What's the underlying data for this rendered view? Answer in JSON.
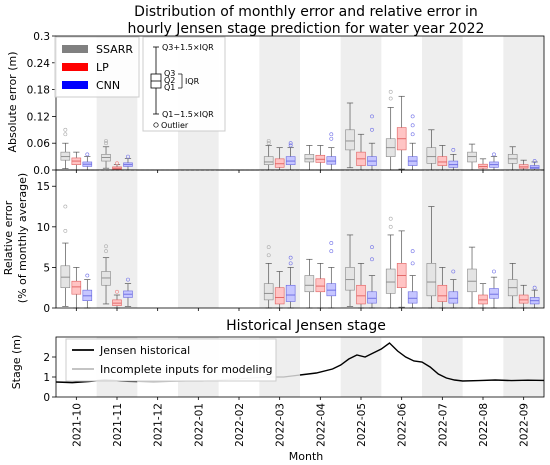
{
  "chart_data": [
    {
      "type": "box",
      "title": [
        "Distribution of monthly error and relative error in",
        "hourly Jensen stage prediction for water year 2022"
      ],
      "ylabel": "Absolute error (m)",
      "ylim": [
        0,
        0.3
      ],
      "yticks": [
        "0.0",
        "0.06",
        "0.12",
        "0.18",
        "0.24",
        "0.3"
      ],
      "categories": [
        "2021-10",
        "2021-11",
        "2021-12",
        "2022-01",
        "2022-02",
        "2022-03",
        "2022-04",
        "2022-05",
        "2022-06",
        "2022-07",
        "2022-08",
        "2022-09"
      ],
      "legend": [
        {
          "name": "SSARR",
          "color": "#808080"
        },
        {
          "name": "LP",
          "color": "#ff0000"
        },
        {
          "name": "CNN",
          "color": "#0000ff"
        }
      ],
      "box_legend": {
        "upper": "Q3+1.5×IQR",
        "q3": "Q3",
        "q2": "Q2",
        "q1": "Q1",
        "iqr": "IQR",
        "lower": "Q1−1.5×IQR",
        "outlier": "Outlier"
      },
      "series": [
        {
          "name": "SSARR",
          "boxes": [
            {
              "month": "2021-10",
              "whislo": 0.003,
              "q1": 0.022,
              "med": 0.03,
              "q3": 0.04,
              "whishi": 0.06,
              "fliers": [
                0.08,
                0.09
              ]
            },
            {
              "month": "2021-11",
              "whislo": 0.004,
              "q1": 0.02,
              "med": 0.028,
              "q3": 0.035,
              "whishi": 0.052,
              "fliers": [
                0.06,
                0.065
              ]
            },
            {
              "month": "2022-03",
              "whislo": 0.0,
              "q1": 0.012,
              "med": 0.018,
              "q3": 0.03,
              "whishi": 0.055,
              "fliers": [
                0.06,
                0.065
              ]
            },
            {
              "month": "2022-04",
              "whislo": 0.0,
              "q1": 0.018,
              "med": 0.025,
              "q3": 0.035,
              "whishi": 0.055,
              "fliers": []
            },
            {
              "month": "2022-05",
              "whislo": 0.005,
              "q1": 0.045,
              "med": 0.065,
              "q3": 0.09,
              "whishi": 0.15,
              "fliers": []
            },
            {
              "month": "2022-06",
              "whislo": 0.0,
              "q1": 0.03,
              "med": 0.05,
              "q3": 0.07,
              "whishi": 0.14,
              "fliers": [
                0.16,
                0.175
              ]
            },
            {
              "month": "2022-07",
              "whislo": 0.0,
              "q1": 0.015,
              "med": 0.03,
              "q3": 0.05,
              "whishi": 0.09,
              "fliers": []
            },
            {
              "month": "2022-08",
              "whislo": 0.0,
              "q1": 0.018,
              "med": 0.03,
              "q3": 0.04,
              "whishi": 0.058,
              "fliers": []
            },
            {
              "month": "2022-09",
              "whislo": 0.0,
              "q1": 0.015,
              "med": 0.025,
              "q3": 0.035,
              "whishi": 0.052,
              "fliers": []
            }
          ]
        },
        {
          "name": "LP",
          "boxes": [
            {
              "month": "2021-10",
              "whislo": 0.0,
              "q1": 0.012,
              "med": 0.02,
              "q3": 0.027,
              "whishi": 0.04,
              "fliers": []
            },
            {
              "month": "2021-11",
              "whislo": 0.0,
              "q1": 0.002,
              "med": 0.004,
              "q3": 0.007,
              "whishi": 0.012,
              "fliers": [
                0.015
              ]
            },
            {
              "month": "2022-03",
              "whislo": 0.0,
              "q1": 0.006,
              "med": 0.014,
              "q3": 0.025,
              "whishi": 0.05,
              "fliers": []
            },
            {
              "month": "2022-04",
              "whislo": 0.0,
              "q1": 0.017,
              "med": 0.024,
              "q3": 0.033,
              "whishi": 0.055,
              "fliers": []
            },
            {
              "month": "2022-05",
              "whislo": 0.0,
              "q1": 0.01,
              "med": 0.025,
              "q3": 0.04,
              "whishi": 0.08,
              "fliers": []
            },
            {
              "month": "2022-06",
              "whislo": 0.002,
              "q1": 0.045,
              "med": 0.07,
              "q3": 0.095,
              "whishi": 0.165,
              "fliers": []
            },
            {
              "month": "2022-07",
              "whislo": 0.0,
              "q1": 0.01,
              "med": 0.018,
              "q3": 0.03,
              "whishi": 0.055,
              "fliers": []
            },
            {
              "month": "2022-08",
              "whislo": 0.0,
              "q1": 0.004,
              "med": 0.008,
              "q3": 0.013,
              "whishi": 0.025,
              "fliers": []
            },
            {
              "month": "2022-09",
              "whislo": 0.0,
              "q1": 0.004,
              "med": 0.007,
              "q3": 0.012,
              "whishi": 0.022,
              "fliers": []
            }
          ]
        },
        {
          "name": "CNN",
          "boxes": [
            {
              "month": "2021-10",
              "whislo": 0.0,
              "q1": 0.008,
              "med": 0.013,
              "q3": 0.018,
              "whishi": 0.03,
              "fliers": [
                0.035
              ]
            },
            {
              "month": "2021-11",
              "whislo": 0.0,
              "q1": 0.008,
              "med": 0.012,
              "q3": 0.016,
              "whishi": 0.026,
              "fliers": [
                0.03
              ]
            },
            {
              "month": "2022-03",
              "whislo": 0.0,
              "q1": 0.012,
              "med": 0.02,
              "q3": 0.03,
              "whishi": 0.05,
              "fliers": [
                0.055,
                0.06
              ]
            },
            {
              "month": "2022-04",
              "whislo": 0.0,
              "q1": 0.013,
              "med": 0.02,
              "q3": 0.03,
              "whishi": 0.05,
              "fliers": [
                0.07,
                0.08
              ]
            },
            {
              "month": "2022-05",
              "whislo": 0.0,
              "q1": 0.01,
              "med": 0.02,
              "q3": 0.03,
              "whishi": 0.06,
              "fliers": [
                0.09,
                0.12
              ]
            },
            {
              "month": "2022-06",
              "whislo": 0.0,
              "q1": 0.01,
              "med": 0.02,
              "q3": 0.03,
              "whishi": 0.06,
              "fliers": [
                0.08,
                0.1,
                0.12
              ]
            },
            {
              "month": "2022-07",
              "whislo": 0.0,
              "q1": 0.006,
              "med": 0.012,
              "q3": 0.02,
              "whishi": 0.035,
              "fliers": [
                0.045
              ]
            },
            {
              "month": "2022-08",
              "whislo": 0.0,
              "q1": 0.006,
              "med": 0.012,
              "q3": 0.018,
              "whishi": 0.03,
              "fliers": [
                0.035
              ]
            },
            {
              "month": "2022-09",
              "whislo": 0.0,
              "q1": 0.003,
              "med": 0.006,
              "q3": 0.01,
              "whishi": 0.018,
              "fliers": [
                0.02
              ]
            }
          ]
        }
      ]
    },
    {
      "type": "box",
      "ylabel": [
        "Relative error",
        "(% of monthly average)"
      ],
      "ylim": [
        0,
        17
      ],
      "yticks": [
        "0",
        "5",
        "10",
        "15"
      ],
      "series": [
        {
          "name": "SSARR",
          "boxes": [
            {
              "month": "2021-10",
              "whislo": 0.2,
              "q1": 2.5,
              "med": 3.8,
              "q3": 5.2,
              "whishi": 8.0,
              "fliers": [
                9.5,
                12.5
              ]
            },
            {
              "month": "2021-11",
              "whislo": 0.5,
              "q1": 2.8,
              "med": 3.7,
              "q3": 4.5,
              "whishi": 6.2,
              "fliers": [
                7.0,
                7.6
              ]
            },
            {
              "month": "2022-03",
              "whislo": 0.0,
              "q1": 1.0,
              "med": 1.8,
              "q3": 3.0,
              "whishi": 5.5,
              "fliers": [
                6.5,
                7.5
              ]
            },
            {
              "month": "2022-04",
              "whislo": 0.0,
              "q1": 2.0,
              "med": 2.8,
              "q3": 4.0,
              "whishi": 6.0,
              "fliers": []
            },
            {
              "month": "2022-05",
              "whislo": 0.2,
              "q1": 2.2,
              "med": 3.5,
              "q3": 5.0,
              "whishi": 9.0,
              "fliers": []
            },
            {
              "month": "2022-06",
              "whislo": 0.0,
              "q1": 1.8,
              "med": 3.2,
              "q3": 4.8,
              "whishi": 9.0,
              "fliers": [
                10.0,
                11.0
              ]
            },
            {
              "month": "2022-07",
              "whislo": 0.0,
              "q1": 1.5,
              "med": 3.2,
              "q3": 5.5,
              "whishi": 12.5,
              "fliers": []
            },
            {
              "month": "2022-08",
              "whislo": 0.0,
              "q1": 2.0,
              "med": 3.3,
              "q3": 4.8,
              "whishi": 7.5,
              "fliers": []
            },
            {
              "month": "2022-09",
              "whislo": 0.0,
              "q1": 1.5,
              "med": 2.5,
              "q3": 3.5,
              "whishi": 5.5,
              "fliers": []
            }
          ]
        },
        {
          "name": "LP",
          "boxes": [
            {
              "month": "2021-10",
              "whislo": 0.0,
              "q1": 1.7,
              "med": 2.6,
              "q3": 3.3,
              "whishi": 5.0,
              "fliers": []
            },
            {
              "month": "2021-11",
              "whislo": 0.0,
              "q1": 0.3,
              "med": 0.6,
              "q3": 1.0,
              "whishi": 1.6,
              "fliers": [
                2.0
              ]
            },
            {
              "month": "2022-03",
              "whislo": 0.0,
              "q1": 0.5,
              "med": 1.3,
              "q3": 2.5,
              "whishi": 4.5,
              "fliers": []
            },
            {
              "month": "2022-04",
              "whislo": 0.0,
              "q1": 2.0,
              "med": 2.7,
              "q3": 3.6,
              "whishi": 5.5,
              "fliers": []
            },
            {
              "month": "2022-05",
              "whislo": 0.0,
              "q1": 0.5,
              "med": 1.5,
              "q3": 2.8,
              "whishi": 5.5,
              "fliers": []
            },
            {
              "month": "2022-06",
              "whislo": 0.1,
              "q1": 2.5,
              "med": 4.0,
              "q3": 5.5,
              "whishi": 9.5,
              "fliers": []
            },
            {
              "month": "2022-07",
              "whislo": 0.0,
              "q1": 0.8,
              "med": 1.5,
              "q3": 2.8,
              "whishi": 5.0,
              "fliers": []
            },
            {
              "month": "2022-08",
              "whislo": 0.0,
              "q1": 0.5,
              "med": 1.0,
              "q3": 1.6,
              "whishi": 3.0,
              "fliers": []
            },
            {
              "month": "2022-09",
              "whislo": 0.0,
              "q1": 0.6,
              "med": 1.0,
              "q3": 1.6,
              "whishi": 2.8,
              "fliers": []
            }
          ]
        },
        {
          "name": "CNN",
          "boxes": [
            {
              "month": "2021-10",
              "whislo": 0.0,
              "q1": 0.9,
              "med": 1.5,
              "q3": 2.2,
              "whishi": 3.5,
              "fliers": [
                4.0
              ]
            },
            {
              "month": "2021-11",
              "whislo": 0.2,
              "q1": 1.3,
              "med": 1.7,
              "q3": 2.1,
              "whishi": 3.0,
              "fliers": [
                3.5
              ]
            },
            {
              "month": "2022-03",
              "whislo": 0.0,
              "q1": 0.8,
              "med": 1.6,
              "q3": 2.8,
              "whishi": 5.0,
              "fliers": [
                5.5,
                6.2
              ]
            },
            {
              "month": "2022-04",
              "whislo": 0.0,
              "q1": 1.5,
              "med": 2.2,
              "q3": 3.0,
              "whishi": 5.0,
              "fliers": [
                7.0,
                8.0
              ]
            },
            {
              "month": "2022-05",
              "whislo": 0.0,
              "q1": 0.6,
              "med": 1.2,
              "q3": 2.0,
              "whishi": 4.0,
              "fliers": [
                6.0,
                7.5
              ]
            },
            {
              "month": "2022-06",
              "whislo": 0.0,
              "q1": 0.6,
              "med": 1.2,
              "q3": 2.0,
              "whishi": 4.0,
              "fliers": [
                5.5,
                7.0
              ]
            },
            {
              "month": "2022-07",
              "whislo": 0.0,
              "q1": 0.6,
              "med": 1.2,
              "q3": 2.0,
              "whishi": 3.5,
              "fliers": [
                4.5
              ]
            },
            {
              "month": "2022-08",
              "whislo": 0.0,
              "q1": 1.2,
              "med": 1.7,
              "q3": 2.4,
              "whishi": 3.8,
              "fliers": [
                4.5
              ]
            },
            {
              "month": "2022-09",
              "whislo": 0.0,
              "q1": 0.5,
              "med": 0.9,
              "q3": 1.3,
              "whishi": 2.2,
              "fliers": [
                2.5
              ]
            }
          ]
        }
      ]
    },
    {
      "type": "line",
      "title": "Historical Jensen stage",
      "ylabel": "Stage (m)",
      "xlabel": "Month",
      "ylim": [
        0,
        3
      ],
      "yticks": [
        "0",
        "1",
        "2"
      ],
      "xticks": [
        "2021-10",
        "2021-11",
        "2021-12",
        "2022-01",
        "2022-02",
        "2022-03",
        "2022-04",
        "2022-05",
        "2022-06",
        "2022-07",
        "2022-08",
        "2022-09"
      ],
      "series": [
        {
          "name": "Jensen historical",
          "color": "#000000",
          "x": [
            0.0,
            0.4,
            0.8,
            1.2,
            1.6,
            2.0,
            2.4,
            2.8,
            3.2,
            3.6,
            4.0,
            4.4,
            4.8,
            5.2,
            5.6,
            6.0,
            6.4,
            6.8,
            7.0,
            7.2,
            7.4,
            7.6,
            7.8,
            8.0,
            8.2,
            8.4,
            8.6,
            8.8,
            9.0,
            9.2,
            9.4,
            9.6,
            9.8,
            10.0,
            10.4,
            10.8,
            11.2,
            11.6,
            12.0
          ],
          "y": [
            0.75,
            0.72,
            0.78,
            0.85,
            0.8,
            0.78,
            0.75,
            0.78,
            0.8,
            0.8,
            0.85,
            0.9,
            0.95,
            1.0,
            1.0,
            1.1,
            1.2,
            1.4,
            1.6,
            1.9,
            2.1,
            2.0,
            2.2,
            2.4,
            2.7,
            2.3,
            2.0,
            1.8,
            1.75,
            1.5,
            1.15,
            0.95,
            0.85,
            0.8,
            0.82,
            0.85,
            0.82,
            0.84,
            0.83
          ]
        },
        {
          "name": "Incomplete inputs for modeling",
          "color": "#bbbbbb"
        }
      ]
    }
  ]
}
